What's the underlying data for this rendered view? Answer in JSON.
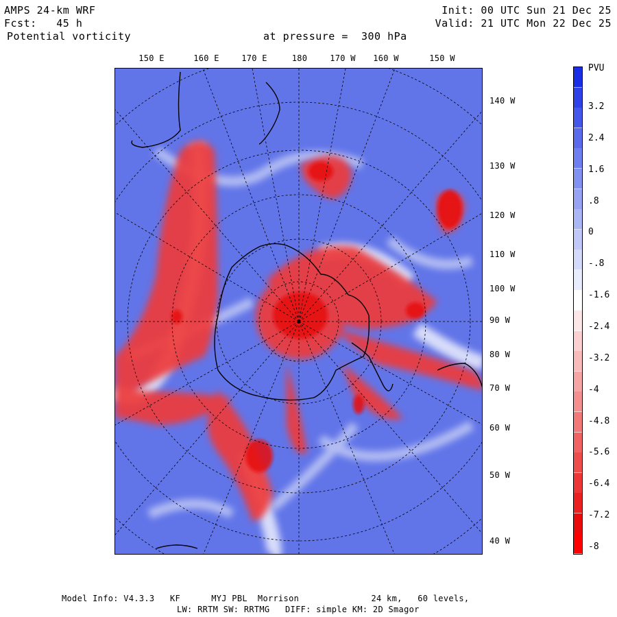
{
  "header": {
    "model": "AMPS 24-km WRF",
    "forecast": "Fcst:   45 h",
    "field": "Potential vorticity",
    "level": "at pressure =  300 hPa",
    "init": "Init: 00 UTC Sun 21 Dec 25",
    "valid": "Valid: 21 UTC Mon 22 Dec 25"
  },
  "map": {
    "top_longitude_labels": [
      "150 E",
      "160 E",
      "170 E",
      "180",
      "170 W",
      "160 W",
      "150 W"
    ],
    "right_longitude_labels": [
      "140 W",
      "130 W",
      "120 W",
      "110 W",
      "100 W",
      "90 W",
      "80 W",
      "70 W",
      "60 W",
      "50 W",
      "40 W"
    ]
  },
  "colorbar": {
    "unit": "PVU",
    "labels": [
      "3.2",
      "2.4",
      "1.6",
      ".8",
      "0",
      "-.8",
      "-1.6",
      "-2.4",
      "-3.2",
      "-4",
      "-4.8",
      "-5.6",
      "-6.4",
      "-7.2",
      "-8"
    ],
    "colors": [
      "#1a2ee6",
      "#2f42e8",
      "#4457ea",
      "#5a6bec",
      "#6e7fef",
      "#8292f1",
      "#97a4f3",
      "#abb6f5",
      "#c0c8f7",
      "#d4daf9",
      "#e8ecfc",
      "#ffffff",
      "#fde6e6",
      "#fbd0d0",
      "#f9baba",
      "#f7a4a4",
      "#f58e8e",
      "#f37878",
      "#f16262",
      "#ef4c4c",
      "#ed3636",
      "#eb2020",
      "#e90a0a",
      "#ff0000"
    ]
  },
  "footer": {
    "line1": "Model Info: V4.3.3   KF      MYJ PBL  Morrison              24 km,   60 levels,",
    "line2": "LW: RRTM SW: RRTMG   DIFF: simple KM: 2D Smagor"
  }
}
